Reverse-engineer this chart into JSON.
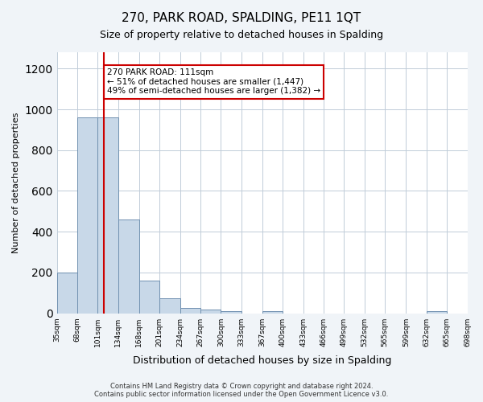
{
  "title": "270, PARK ROAD, SPALDING, PE11 1QT",
  "subtitle": "Size of property relative to detached houses in Spalding",
  "xlabel": "Distribution of detached houses by size in Spalding",
  "ylabel": "Number of detached properties",
  "bins": [
    35,
    68,
    101,
    134,
    168,
    201,
    234,
    267,
    300,
    333,
    367,
    400,
    433,
    466,
    499,
    532,
    565,
    599,
    632,
    665,
    698
  ],
  "bar_heights": [
    200,
    960,
    960,
    460,
    160,
    75,
    25,
    18,
    10,
    0,
    10,
    0,
    0,
    0,
    0,
    0,
    0,
    0,
    10,
    0,
    0
  ],
  "bar_color": "#c8d8e8",
  "bar_edgecolor": "#7090b0",
  "property_line_x": 111,
  "property_line_color": "#cc0000",
  "annotation_text": "270 PARK ROAD: 111sqm\n← 51% of detached houses are smaller (1,447)\n49% of semi-detached houses are larger (1,382) →",
  "annotation_box_edgecolor": "#cc0000",
  "ylim": [
    0,
    1280
  ],
  "yticks": [
    0,
    200,
    400,
    600,
    800,
    1000,
    1200
  ],
  "footer_text": "Contains HM Land Registry data © Crown copyright and database right 2024.\nContains public sector information licensed under the Open Government Licence v3.0.",
  "background_color": "#f0f4f8",
  "plot_background_color": "#ffffff",
  "grid_color": "#c0ccd8"
}
